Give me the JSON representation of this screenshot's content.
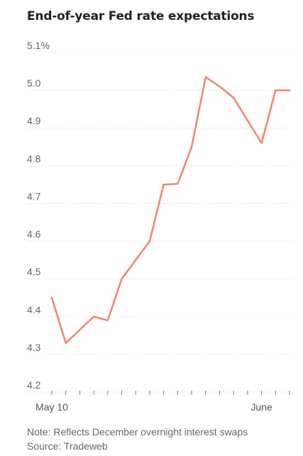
{
  "chart_data": {
    "type": "line",
    "title": "End-of-year Fed rate expectations",
    "xlabel": "",
    "ylabel": "",
    "ylim": [
      4.2,
      5.1
    ],
    "yticks": [
      4.2,
      4.3,
      4.4,
      4.5,
      4.6,
      4.7,
      4.8,
      4.9,
      5.0,
      5.1
    ],
    "ytick_labels": [
      "4.2",
      "4.3",
      "4.4",
      "4.5",
      "4.6",
      "4.7",
      "4.8",
      "4.9",
      "5.0",
      "5.1%"
    ],
    "x_dates": [
      "2023-05-10",
      "2023-05-11",
      "2023-05-12",
      "2023-05-15",
      "2023-05-16",
      "2023-05-17",
      "2023-05-18",
      "2023-05-19",
      "2023-05-22",
      "2023-05-23",
      "2023-05-24",
      "2023-05-25",
      "2023-05-26",
      "2023-05-30",
      "2023-05-31",
      "2023-06-01",
      "2023-06-02",
      "2023-06-05"
    ],
    "x_tick_labels": [
      {
        "date": "2023-05-10",
        "text": "May 10"
      },
      {
        "date": "2023-06-01",
        "text": "June"
      }
    ],
    "series": [
      {
        "color": "#f08471",
        "values": [
          4.45,
          4.33,
          4.365,
          4.4,
          4.39,
          4.5,
          4.55,
          4.6,
          4.75,
          4.752,
          4.85,
          5.035,
          5.01,
          4.98,
          4.92,
          4.86,
          5.0,
          5.0
        ]
      }
    ],
    "grid": true,
    "legend": "none"
  },
  "footnote": {
    "note": "Note: Reflects December overnight interest swaps",
    "source": "Source: Tradeweb"
  }
}
